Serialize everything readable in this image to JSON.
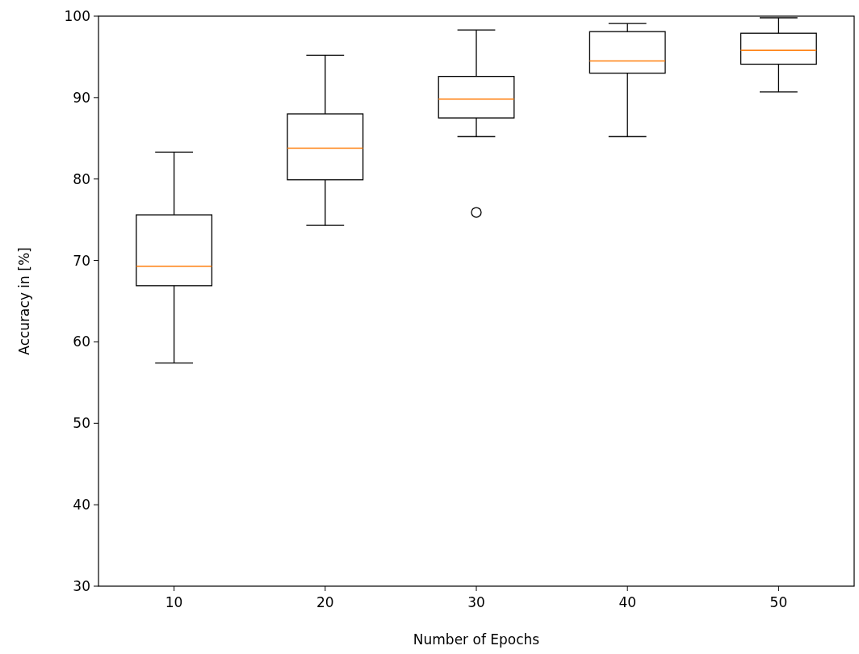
{
  "chart_data": {
    "type": "box",
    "xlabel": "Number of Epochs",
    "ylabel": "Accuracy in [%]",
    "categories": [
      "10",
      "20",
      "30",
      "40",
      "50"
    ],
    "ylim": [
      30,
      100
    ],
    "yticks": [
      30,
      40,
      50,
      60,
      70,
      80,
      90,
      100
    ],
    "grid": false,
    "series": [
      {
        "color": "#000000",
        "boxes": [
          {
            "low": 57.4,
            "q1": 66.9,
            "median": 69.3,
            "q3": 75.6,
            "high": 83.3
          },
          {
            "low": 74.3,
            "q1": 79.9,
            "median": 83.8,
            "q3": 88.0,
            "high": 95.2
          },
          {
            "low": 85.2,
            "q1": 87.5,
            "median": 89.8,
            "q3": 92.6,
            "high": 98.3,
            "outliers": [
              75.9
            ]
          },
          {
            "low": 85.2,
            "q1": 93.0,
            "median": 94.5,
            "q3": 98.1,
            "high": 99.1
          },
          {
            "low": 90.7,
            "q1": 94.1,
            "median": 95.8,
            "q3": 97.9,
            "high": 99.8
          }
        ]
      }
    ]
  }
}
